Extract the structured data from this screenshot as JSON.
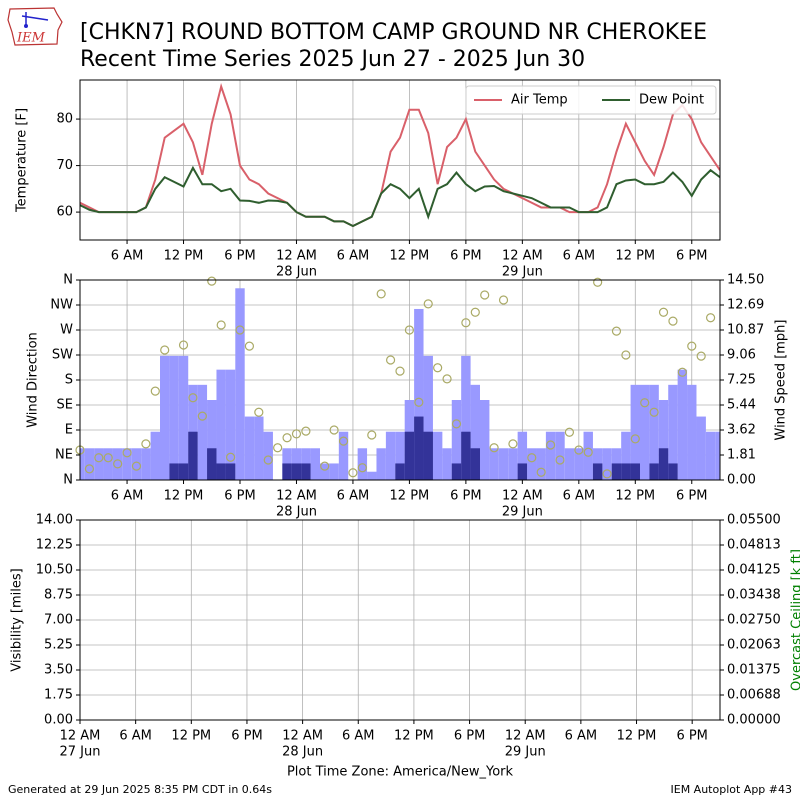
{
  "header": {
    "logo": "IEM",
    "title": "[CHKN7] ROUND BOTTOM CAMP GROUND NR CHEROKEE",
    "subtitle": "Recent Time Series 2025 Jun 27 - 2025 Jun 30"
  },
  "footer": {
    "generated": "Generated at 29 Jun 2025 8:35 PM CDT in 0.64s",
    "app": "IEM Autoplot App #43"
  },
  "chart_data": [
    {
      "type": "line",
      "ylabel": "Temperature [F]",
      "grid": true,
      "legend": "upper right",
      "xlim": [
        "2025-06-27 01:00",
        "2025-06-29 21:00"
      ],
      "ylim": [
        54,
        88.4
      ],
      "yticks": [
        60,
        70,
        80
      ],
      "xticks": [
        {
          "value": "2025-06-27 06:00",
          "label": "6 AM"
        },
        {
          "value": "2025-06-27 12:00",
          "label": "12 PM"
        },
        {
          "value": "2025-06-27 18:00",
          "label": "6 PM"
        },
        {
          "value": "2025-06-28 00:00",
          "label": "12 AM",
          "date": "28 Jun"
        },
        {
          "value": "2025-06-28 06:00",
          "label": "6 AM"
        },
        {
          "value": "2025-06-28 12:00",
          "label": "12 PM"
        },
        {
          "value": "2025-06-28 18:00",
          "label": "6 PM"
        },
        {
          "value": "2025-06-29 00:00",
          "label": "12 AM",
          "date": "29 Jun"
        },
        {
          "value": "2025-06-29 06:00",
          "label": "6 AM"
        },
        {
          "value": "2025-06-29 12:00",
          "label": "12 PM"
        },
        {
          "value": "2025-06-29 18:00",
          "label": "6 PM"
        }
      ],
      "x": [
        "2025-06-27 01:00",
        "2025-06-27 02:00",
        "2025-06-27 03:00",
        "2025-06-27 04:00",
        "2025-06-27 05:00",
        "2025-06-27 06:00",
        "2025-06-27 07:00",
        "2025-06-27 08:00",
        "2025-06-27 09:00",
        "2025-06-27 10:00",
        "2025-06-27 11:00",
        "2025-06-27 12:00",
        "2025-06-27 13:00",
        "2025-06-27 14:00",
        "2025-06-27 15:00",
        "2025-06-27 16:00",
        "2025-06-27 17:00",
        "2025-06-27 18:00",
        "2025-06-27 19:00",
        "2025-06-27 20:00",
        "2025-06-27 21:00",
        "2025-06-27 22:00",
        "2025-06-27 23:00",
        "2025-06-28 00:00",
        "2025-06-28 01:00",
        "2025-06-28 02:00",
        "2025-06-28 03:00",
        "2025-06-28 04:00",
        "2025-06-28 05:00",
        "2025-06-28 06:00",
        "2025-06-28 07:00",
        "2025-06-28 08:00",
        "2025-06-28 09:00",
        "2025-06-28 10:00",
        "2025-06-28 11:00",
        "2025-06-28 12:00",
        "2025-06-28 13:00",
        "2025-06-28 14:00",
        "2025-06-28 15:00",
        "2025-06-28 16:00",
        "2025-06-28 17:00",
        "2025-06-28 18:00",
        "2025-06-28 19:00",
        "2025-06-28 20:00",
        "2025-06-28 21:00",
        "2025-06-28 22:00",
        "2025-06-28 23:00",
        "2025-06-29 00:00",
        "2025-06-29 01:00",
        "2025-06-29 02:00",
        "2025-06-29 03:00",
        "2025-06-29 04:00",
        "2025-06-29 05:00",
        "2025-06-29 06:00",
        "2025-06-29 07:00",
        "2025-06-29 08:00",
        "2025-06-29 09:00",
        "2025-06-29 10:00",
        "2025-06-29 11:00",
        "2025-06-29 12:00",
        "2025-06-29 13:00",
        "2025-06-29 14:00",
        "2025-06-29 15:00",
        "2025-06-29 16:00",
        "2025-06-29 17:00",
        "2025-06-29 18:00",
        "2025-06-29 19:00",
        "2025-06-29 20:00",
        "2025-06-29 21:00"
      ],
      "series": [
        {
          "name": "Air Temp",
          "color": "#d9606a",
          "values": [
            62,
            61,
            60,
            60,
            60,
            60,
            60,
            61,
            67,
            76,
            77.5,
            79,
            75,
            68,
            79,
            87,
            81,
            70,
            67,
            66,
            64,
            63,
            62,
            60,
            59,
            59,
            59,
            58,
            58,
            57,
            58,
            59,
            64,
            73,
            76,
            82,
            82,
            77,
            66,
            74,
            76,
            80,
            73,
            70,
            67,
            65,
            64,
            63,
            62,
            61,
            61,
            61,
            60,
            60,
            60,
            61,
            66,
            73,
            79,
            75,
            71,
            68,
            74,
            81,
            83,
            80,
            75,
            72,
            69
          ]
        },
        {
          "name": "Dew Point",
          "color": "#2f5e2f",
          "values": [
            61.5,
            60.5,
            60,
            60,
            60,
            60,
            60,
            61,
            65,
            67.5,
            66.5,
            65.5,
            69.5,
            66,
            66,
            64.5,
            65,
            62.5,
            62.4,
            62,
            62.5,
            62.4,
            62,
            60,
            59,
            59,
            59,
            58,
            58,
            57,
            58,
            59,
            64,
            66,
            65,
            63,
            65,
            59,
            65,
            66,
            68.5,
            66,
            64.5,
            65.5,
            65.6,
            64.5,
            64,
            63.5,
            63,
            62,
            61,
            61,
            61,
            60,
            60,
            60,
            61,
            66,
            66.8,
            67,
            66,
            66,
            66.5,
            68.5,
            66.5,
            63.5,
            67,
            69,
            67.5
          ]
        }
      ]
    },
    {
      "type": "combo",
      "ylabel": "Wind Direction",
      "y2label": "Wind Speed [mph]",
      "grid": true,
      "xlim": [
        "2025-06-27 01:00",
        "2025-06-29 21:00"
      ],
      "ylim": [
        0,
        360
      ],
      "y2lim": [
        0,
        14.5
      ],
      "yticks": [
        {
          "value": 0,
          "label": "N"
        },
        {
          "value": 45,
          "label": "NE"
        },
        {
          "value": 90,
          "label": "E"
        },
        {
          "value": 135,
          "label": "SE"
        },
        {
          "value": 180,
          "label": "S"
        },
        {
          "value": 225,
          "label": "SW"
        },
        {
          "value": 270,
          "label": "W"
        },
        {
          "value": 315,
          "label": "NW"
        },
        {
          "value": 360,
          "label": "N"
        }
      ],
      "y2ticks": [
        {
          "value": 0,
          "label": "0.00"
        },
        {
          "value": 1.8125,
          "label": "1.81"
        },
        {
          "value": 3.625,
          "label": "3.62"
        },
        {
          "value": 5.4375,
          "label": "5.44"
        },
        {
          "value": 7.25,
          "label": "7.25"
        },
        {
          "value": 9.0625,
          "label": "9.06"
        },
        {
          "value": 10.875,
          "label": "10.87"
        },
        {
          "value": 12.6875,
          "label": "12.69"
        },
        {
          "value": 14.5,
          "label": "14.50"
        }
      ],
      "xticks": [
        {
          "value": "2025-06-27 06:00",
          "label": "6 AM"
        },
        {
          "value": "2025-06-27 12:00",
          "label": "12 PM"
        },
        {
          "value": "2025-06-27 18:00",
          "label": "6 PM"
        },
        {
          "value": "2025-06-28 00:00",
          "label": "12 AM",
          "date": "28 Jun"
        },
        {
          "value": "2025-06-28 06:00",
          "label": "6 AM"
        },
        {
          "value": "2025-06-28 12:00",
          "label": "12 PM"
        },
        {
          "value": "2025-06-28 18:00",
          "label": "6 PM"
        },
        {
          "value": "2025-06-29 00:00",
          "label": "12 AM",
          "date": "29 Jun"
        },
        {
          "value": "2025-06-29 06:00",
          "label": "6 AM"
        },
        {
          "value": "2025-06-29 12:00",
          "label": "12 PM"
        },
        {
          "value": "2025-06-29 18:00",
          "label": "6 PM"
        }
      ],
      "x": [
        "2025-06-27 01:00",
        "2025-06-27 02:00",
        "2025-06-27 03:00",
        "2025-06-27 04:00",
        "2025-06-27 05:00",
        "2025-06-27 06:00",
        "2025-06-27 07:00",
        "2025-06-27 08:00",
        "2025-06-27 09:00",
        "2025-06-27 10:00",
        "2025-06-27 11:00",
        "2025-06-27 12:00",
        "2025-06-27 13:00",
        "2025-06-27 14:00",
        "2025-06-27 15:00",
        "2025-06-27 16:00",
        "2025-06-27 17:00",
        "2025-06-27 18:00",
        "2025-06-27 19:00",
        "2025-06-27 20:00",
        "2025-06-27 21:00",
        "2025-06-27 22:00",
        "2025-06-27 23:00",
        "2025-06-28 00:00",
        "2025-06-28 01:00",
        "2025-06-28 02:00",
        "2025-06-28 03:00",
        "2025-06-28 04:00",
        "2025-06-28 05:00",
        "2025-06-28 06:00",
        "2025-06-28 07:00",
        "2025-06-28 08:00",
        "2025-06-28 09:00",
        "2025-06-28 10:00",
        "2025-06-28 11:00",
        "2025-06-28 12:00",
        "2025-06-28 13:00",
        "2025-06-28 14:00",
        "2025-06-28 15:00",
        "2025-06-28 16:00",
        "2025-06-28 17:00",
        "2025-06-28 18:00",
        "2025-06-28 19:00",
        "2025-06-28 20:00",
        "2025-06-28 21:00",
        "2025-06-28 22:00",
        "2025-06-28 23:00",
        "2025-06-29 00:00",
        "2025-06-29 01:00",
        "2025-06-29 02:00",
        "2025-06-29 03:00",
        "2025-06-29 04:00",
        "2025-06-29 05:00",
        "2025-06-29 06:00",
        "2025-06-29 07:00",
        "2025-06-29 08:00",
        "2025-06-29 09:00",
        "2025-06-29 10:00",
        "2025-06-29 11:00",
        "2025-06-29 12:00",
        "2025-06-29 13:00",
        "2025-06-29 14:00",
        "2025-06-29 15:00",
        "2025-06-29 16:00",
        "2025-06-29 17:00",
        "2025-06-29 18:00",
        "2025-06-29 19:00",
        "2025-06-29 20:00",
        "2025-06-29 21:00"
      ],
      "series": [
        {
          "type": "bar",
          "axis": "y2",
          "color": "#9999ff",
          "values": [
            2.3,
            2.3,
            2.3,
            2.3,
            2.3,
            2.3,
            2.3,
            2.3,
            3.5,
            9,
            9,
            9,
            6.9,
            6.9,
            5.8,
            8,
            8,
            13.9,
            4.6,
            4.6,
            3.5,
            0,
            2.3,
            2.3,
            2.3,
            2.3,
            1.2,
            1.2,
            3.5,
            0,
            2.3,
            0.6,
            2.3,
            3.5,
            3.5,
            5.8,
            12.4,
            9,
            3.5,
            2.3,
            5.8,
            9,
            6.9,
            5.8,
            2.3,
            2.3,
            2.3,
            3.5,
            2.3,
            2.3,
            3.5,
            3.5,
            2.3,
            2.3,
            3.5,
            2.3,
            2.3,
            2.3,
            3.5,
            6.9,
            6.9,
            6.9,
            5.8,
            6.9,
            8,
            6.9,
            4.6,
            3.5,
            3.5
          ]
        },
        {
          "type": "bar",
          "axis": "y2",
          "color": "#333399",
          "values": [
            0,
            0,
            0,
            0,
            0,
            0,
            0,
            0,
            0,
            0,
            1.2,
            1.2,
            3.5,
            0,
            2.3,
            1.2,
            1.2,
            0,
            0,
            0,
            0,
            0,
            1.2,
            1.2,
            1.2,
            0,
            0,
            0,
            0,
            0,
            0,
            0,
            0,
            0,
            1.2,
            3.5,
            4.6,
            3.5,
            0,
            0,
            1.2,
            3.5,
            2.3,
            0,
            0,
            0,
            0,
            1.2,
            0,
            0,
            0,
            0,
            0,
            0,
            0,
            1.2,
            0,
            1.2,
            1.2,
            1.2,
            0,
            1.2,
            2.3,
            1.2,
            0,
            0,
            0,
            0,
            0
          ]
        },
        {
          "type": "scatter",
          "color": "#aaaa66",
          "values": [
            54,
            20,
            40,
            40,
            29,
            49,
            25,
            65,
            160,
            234,
            null,
            243,
            148,
            115,
            358,
            279,
            41,
            270,
            241,
            122,
            36,
            58,
            76,
            83,
            88,
            null,
            25,
            90,
            70,
            13,
            22,
            81,
            335,
            216,
            196,
            270,
            140,
            317,
            202,
            182,
            101,
            283,
            302,
            333,
            58,
            324,
            65,
            null,
            40,
            14,
            63,
            36,
            86,
            54,
            50,
            356,
            11,
            268,
            225,
            74,
            139,
            122,
            302,
            286,
            194,
            241,
            223,
            292,
            null
          ]
        }
      ]
    },
    {
      "type": "line",
      "ylabel": "Visibility [miles]",
      "y2label": "Overcast Ceiling [k ft]",
      "y2label_color": "#008000",
      "grid": true,
      "xlabel": "Plot Time Zone: America/New_York",
      "xlim": [
        "2025-06-27 00:00",
        "2025-06-29 21:00"
      ],
      "ylim": [
        0,
        14
      ],
      "y2lim": [
        0,
        0.055
      ],
      "yticks": [
        {
          "value": 0,
          "label": "0.00"
        },
        {
          "value": 1.75,
          "label": "1.75"
        },
        {
          "value": 3.5,
          "label": "3.50"
        },
        {
          "value": 5.25,
          "label": "5.25"
        },
        {
          "value": 7,
          "label": "7.00"
        },
        {
          "value": 8.75,
          "label": "8.75"
        },
        {
          "value": 10.5,
          "label": "10.50"
        },
        {
          "value": 12.25,
          "label": "12.25"
        },
        {
          "value": 14,
          "label": "14.00"
        }
      ],
      "y2ticks": [
        {
          "value": 0,
          "label": "0.00000"
        },
        {
          "value": 0.006875,
          "label": "0.00688"
        },
        {
          "value": 0.01375,
          "label": "0.01375"
        },
        {
          "value": 0.020625,
          "label": "0.02063"
        },
        {
          "value": 0.0275,
          "label": "0.02750"
        },
        {
          "value": 0.034375,
          "label": "0.03438"
        },
        {
          "value": 0.04125,
          "label": "0.04125"
        },
        {
          "value": 0.048125,
          "label": "0.04813"
        },
        {
          "value": 0.055,
          "label": "0.05500"
        }
      ],
      "xticks": [
        {
          "value": "2025-06-27 00:00",
          "label": "12 AM",
          "date": "27 Jun"
        },
        {
          "value": "2025-06-27 06:00",
          "label": "6 AM"
        },
        {
          "value": "2025-06-27 12:00",
          "label": "12 PM"
        },
        {
          "value": "2025-06-27 18:00",
          "label": "6 PM"
        },
        {
          "value": "2025-06-28 00:00",
          "label": "12 AM",
          "date": "28 Jun"
        },
        {
          "value": "2025-06-28 06:00",
          "label": "6 AM"
        },
        {
          "value": "2025-06-28 12:00",
          "label": "12 PM"
        },
        {
          "value": "2025-06-28 18:00",
          "label": "6 PM"
        },
        {
          "value": "2025-06-29 00:00",
          "label": "12 AM",
          "date": "29 Jun"
        },
        {
          "value": "2025-06-29 06:00",
          "label": "6 AM"
        },
        {
          "value": "2025-06-29 12:00",
          "label": "12 PM"
        },
        {
          "value": "2025-06-29 18:00",
          "label": "6 PM"
        }
      ]
    }
  ]
}
